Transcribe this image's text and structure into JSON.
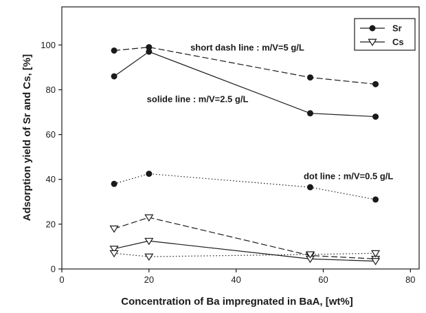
{
  "chart_data": {
    "type": "line",
    "title": "",
    "xlabel": "Concentration of Ba impregnated in BaA, [wt%]",
    "ylabel": "Adsorption yield of Sr and Cs, [%]",
    "xlim": [
      0,
      82
    ],
    "ylim": [
      0,
      117
    ],
    "xticks": [
      0,
      20,
      40,
      60,
      80
    ],
    "yticks": [
      0,
      20,
      40,
      60,
      80,
      100
    ],
    "grid": false,
    "legend": {
      "position": "top-right",
      "entries": [
        {
          "label": "Sr",
          "marker": "filled-circle"
        },
        {
          "label": "Cs",
          "marker": "open-down-triangle"
        }
      ]
    },
    "annotations": [
      {
        "text": "short dash line : m/V=5 g/L",
        "x": 29.5,
        "y": 97.5
      },
      {
        "text": "solide line : m/V=2.5 g/L",
        "x": 19.5,
        "y": 74.5
      },
      {
        "text": "dot line : m/V=0.5 g/L",
        "x": 55.5,
        "y": 40
      }
    ],
    "series": [
      {
        "element": "Sr",
        "style": "dashed",
        "marker": "filled-circle",
        "x": [
          12,
          20,
          57,
          72
        ],
        "y": [
          97.5,
          99,
          85.5,
          82.5
        ]
      },
      {
        "element": "Sr",
        "style": "solid",
        "marker": "filled-circle",
        "x": [
          12,
          20,
          57,
          72
        ],
        "y": [
          86,
          97,
          69.5,
          68
        ]
      },
      {
        "element": "Sr",
        "style": "dotted",
        "marker": "filled-circle",
        "x": [
          12,
          20,
          57,
          72
        ],
        "y": [
          38,
          42.5,
          36.5,
          31
        ]
      },
      {
        "element": "Cs",
        "style": "dashed",
        "marker": "open-down-triangle",
        "x": [
          12,
          20,
          57,
          72
        ],
        "y": [
          18,
          23,
          6,
          4.5
        ]
      },
      {
        "element": "Cs",
        "style": "solid",
        "marker": "open-down-triangle",
        "x": [
          12,
          20,
          57,
          72
        ],
        "y": [
          9,
          12.5,
          4.5,
          3.5
        ]
      },
      {
        "element": "Cs",
        "style": "dotted",
        "marker": "open-down-triangle",
        "x": [
          12,
          20,
          57,
          72
        ],
        "y": [
          7,
          5.5,
          6.5,
          7
        ]
      }
    ]
  }
}
